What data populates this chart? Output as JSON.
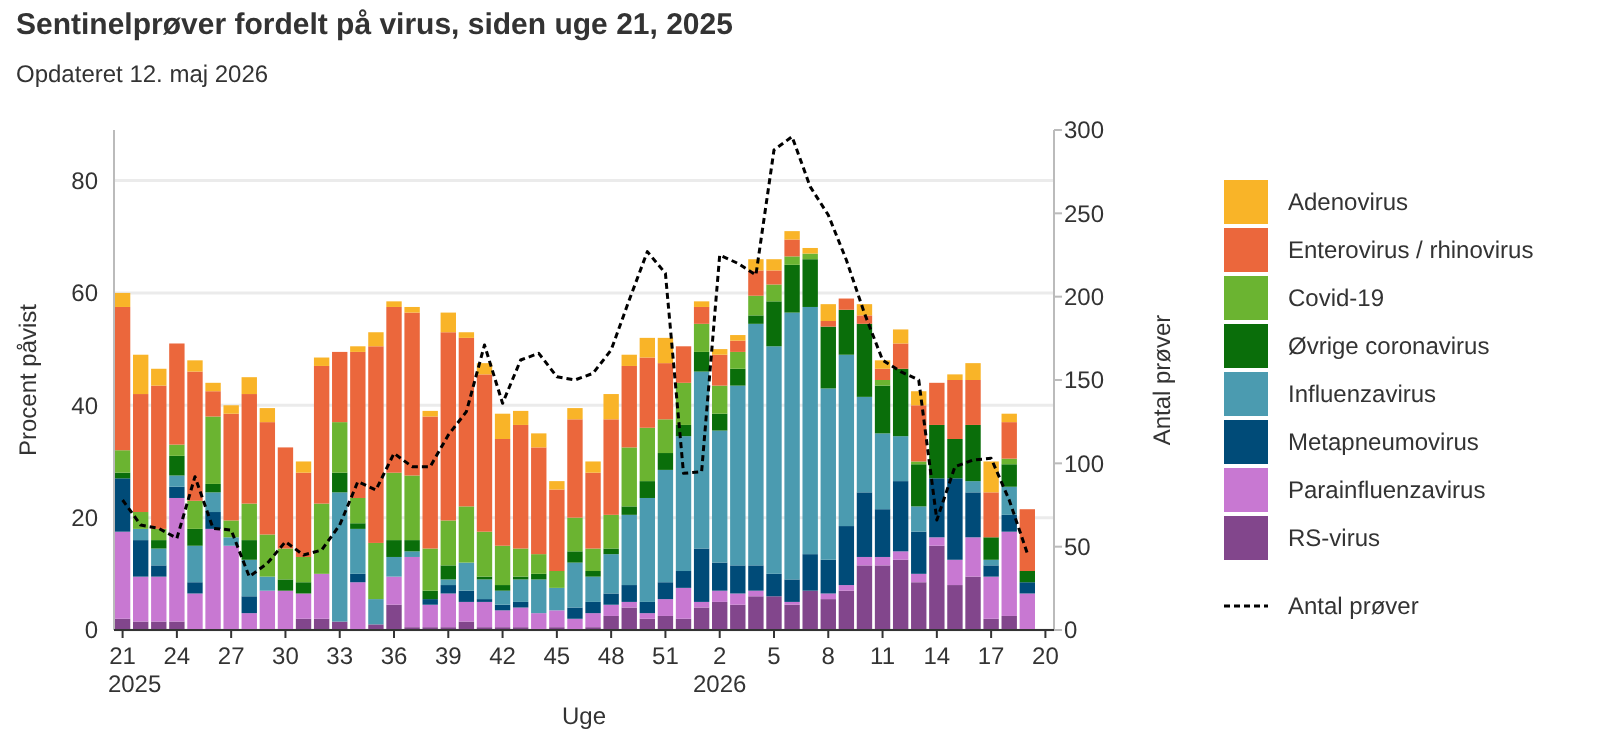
{
  "chart_data": {
    "type": "bar",
    "title": "Sentinelprøver fordelt på virus, siden uge 21, 2025",
    "subtitle": "Opdateret 12. maj 2026",
    "xlabel": "Uge",
    "ylabel": "Procent påvist",
    "y2label": "Antal prøver",
    "categories": [
      "21\n2025",
      null,
      null,
      "24",
      null,
      null,
      "27",
      null,
      null,
      "30",
      null,
      null,
      "33",
      null,
      null,
      "36",
      null,
      null,
      "39",
      null,
      null,
      "42",
      null,
      null,
      "45",
      null,
      null,
      "48",
      null,
      null,
      "51",
      null,
      null,
      "2\n2026",
      null,
      null,
      "5",
      null,
      null,
      "8",
      null,
      null,
      "11",
      null,
      null,
      "14",
      null,
      null,
      "17",
      null,
      null,
      "20"
    ],
    "stacked": true,
    "ylim": [
      0,
      89
    ],
    "yticks": [
      0,
      20,
      40,
      60,
      80
    ],
    "y2lim": [
      0,
      300
    ],
    "y2ticks": [
      0,
      50,
      100,
      150,
      200,
      250,
      300
    ],
    "grid": "y",
    "legend": "right",
    "series": [
      {
        "name": "RS-virus",
        "color": "#82468c",
        "values": [
          2,
          1.5,
          1.5,
          1.5,
          0,
          0,
          0,
          0,
          0,
          0,
          2,
          2,
          1.5,
          0,
          1,
          4.5,
          0.5,
          0.5,
          0.5,
          1.5,
          0.5,
          0.5,
          0.5,
          0,
          0.5,
          0,
          0.5,
          2.5,
          4,
          2,
          2.5,
          2,
          4,
          5,
          4.5,
          6,
          6,
          4.5,
          7,
          5.5,
          7,
          11.5,
          11.5,
          12.5,
          8.5,
          15,
          8,
          9.5,
          2,
          2.5,
          0,
          null
        ]
      },
      {
        "name": "Parainfluenzavirus",
        "color": "#c878d2",
        "values": [
          15.5,
          8,
          8,
          22,
          6.5,
          18,
          15,
          3,
          7,
          7,
          4.5,
          8,
          0,
          8.5,
          0,
          5,
          12.5,
          4,
          6,
          3.5,
          4.5,
          3,
          3.5,
          3,
          3,
          2,
          2.5,
          2,
          1,
          1,
          3,
          5.5,
          1,
          2,
          2,
          1,
          0,
          0.5,
          0,
          1,
          1,
          1.5,
          1.5,
          1.5,
          1.5,
          1.5,
          4.5,
          7,
          7.5,
          15,
          6.5,
          null
        ]
      },
      {
        "name": "Metapneumovirus",
        "color": "#004b78",
        "values": [
          9.5,
          6.5,
          2,
          2,
          2,
          3,
          0,
          3,
          0,
          0,
          0,
          0,
          0,
          1.5,
          0,
          0,
          0,
          1,
          1.5,
          2,
          0.5,
          1,
          1,
          0,
          0,
          2,
          2,
          2,
          3,
          2,
          3,
          3,
          9.5,
          5,
          5,
          4.5,
          4,
          4,
          6.5,
          6,
          10.5,
          11.5,
          8.5,
          12.5,
          7.5,
          10.5,
          14.5,
          8,
          2,
          3,
          2,
          null
        ]
      },
      {
        "name": "Influenzavirus",
        "color": "#4b9bb0",
        "values": [
          0,
          2,
          3,
          2,
          6.5,
          3.5,
          1.5,
          6.5,
          2.5,
          0,
          0,
          0,
          23,
          8,
          4.5,
          3.5,
          1,
          0,
          1,
          5,
          3.5,
          2.5,
          4,
          6,
          4,
          8,
          4.5,
          7,
          12.5,
          18.5,
          20,
          24,
          31.5,
          23.5,
          32,
          43,
          40.5,
          47.5,
          44,
          30.5,
          30.5,
          17,
          13.5,
          8,
          4.5,
          0,
          0,
          2,
          1,
          5,
          0,
          null
        ]
      },
      {
        "name": "Øvrige coronavirus",
        "color": "#0a6e0a",
        "values": [
          1,
          0,
          1.5,
          3.5,
          3,
          1.5,
          0,
          3.5,
          0,
          2,
          2,
          0,
          3.5,
          1,
          0,
          3,
          2,
          1.5,
          2.5,
          0,
          0.5,
          1,
          0.5,
          1,
          0,
          2,
          1,
          1,
          1.5,
          3,
          3,
          2,
          3.5,
          3,
          3,
          1.5,
          8,
          8.5,
          8.5,
          11,
          8,
          13,
          8.5,
          12,
          7.5,
          9.5,
          7,
          10,
          4,
          4,
          2,
          null
        ]
      },
      {
        "name": "Covid-19",
        "color": "#6bb431",
        "values": [
          4,
          3,
          2,
          2,
          5,
          12,
          3,
          6.5,
          7.5,
          5.5,
          4.5,
          12.5,
          9,
          4.5,
          10,
          12,
          11.5,
          7.5,
          8,
          10,
          8,
          7,
          5,
          3.5,
          3,
          6,
          4,
          6,
          10.5,
          9.5,
          6,
          7.5,
          5,
          5,
          3,
          3.5,
          3,
          1.5,
          1,
          0,
          0,
          0,
          1,
          0,
          0.5,
          0,
          0,
          0,
          0,
          1,
          0,
          null
        ]
      },
      {
        "name": "Enterovirus / rhinovirus",
        "color": "#eb673c",
        "values": [
          25.5,
          21,
          25.5,
          18,
          23,
          4.5,
          19,
          19.5,
          20,
          18,
          15,
          24.5,
          12.5,
          26,
          35,
          29.5,
          29,
          23.5,
          33.5,
          30,
          28,
          19,
          22,
          19,
          14.5,
          17.5,
          13.5,
          17,
          14.5,
          12.5,
          10,
          6.5,
          3,
          5.5,
          2,
          4.5,
          2.5,
          3,
          0,
          1,
          2,
          1.5,
          2,
          4.5,
          10,
          7.5,
          10.5,
          8,
          8,
          6.5,
          11,
          null
        ]
      },
      {
        "name": "Adenovirus",
        "color": "#f9b428",
        "values": [
          2.5,
          7,
          3,
          0,
          2,
          1.5,
          1.5,
          3,
          2.5,
          0,
          2,
          1.5,
          0,
          1,
          2.5,
          1,
          1,
          1,
          3.5,
          1,
          2,
          4.5,
          2.5,
          2.5,
          1.5,
          2,
          2,
          4.5,
          2,
          3.5,
          4.5,
          0,
          1,
          1,
          1,
          2,
          2,
          1.5,
          1,
          3,
          0,
          2,
          1.5,
          2.5,
          2.5,
          0,
          1,
          3,
          5.5,
          1.5,
          0,
          null
        ]
      },
      {
        "name": "Antal prøver",
        "type": "line",
        "axis": "y2",
        "color": "#000000",
        "line_style": "dashed",
        "marker": "none",
        "values": [
          78,
          63,
          61,
          55,
          92,
          61,
          60,
          32,
          40,
          53,
          45,
          48,
          63,
          89,
          84,
          106,
          98,
          98,
          117,
          131,
          171,
          136,
          162,
          166,
          152,
          150,
          154,
          168,
          198,
          227,
          214,
          94,
          95,
          225,
          220,
          213,
          288,
          296,
          266,
          249,
          222,
          190,
          162,
          155,
          150,
          66,
          98,
          102,
          103,
          78,
          46,
          null
        ]
      }
    ]
  }
}
